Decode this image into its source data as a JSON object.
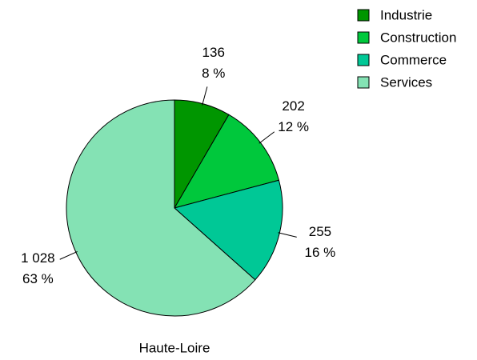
{
  "chart_data": {
    "type": "pie",
    "title": "Haute-Loire",
    "categories": [
      "Industrie",
      "Construction",
      "Commerce",
      "Services"
    ],
    "values": [
      136,
      202,
      255,
      1028
    ],
    "value_labels": [
      "136",
      "202",
      "255",
      "1 028"
    ],
    "percent_labels": [
      "8 %",
      "12 %",
      "16 %",
      "63 %"
    ],
    "colors": [
      "#009600",
      "#00c83c",
      "#00c896",
      "#84e2b4"
    ],
    "legend": "top-right"
  }
}
